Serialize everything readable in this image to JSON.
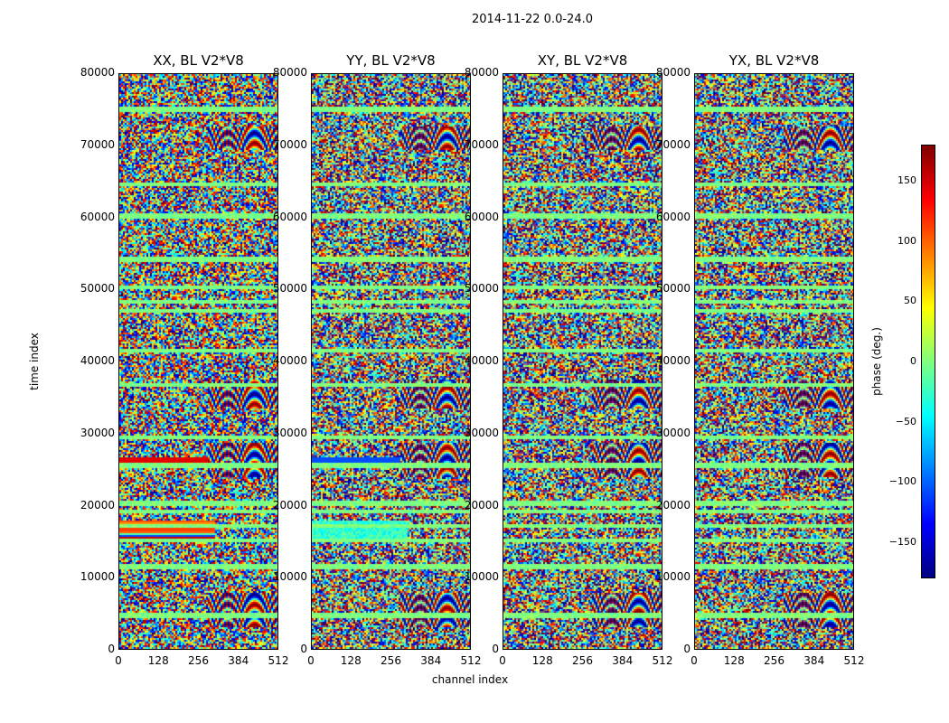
{
  "chart_data": {
    "type": "heatmap",
    "suptitle": "2014-11-22 0.0-24.0",
    "panels": [
      {
        "title": "XX, BL V2*V8"
      },
      {
        "title": "YY, BL V2*V8"
      },
      {
        "title": "XY, BL V2*V8"
      },
      {
        "title": "YX, BL V2*V8"
      }
    ],
    "xlabel": "channel index",
    "ylabel": "time index",
    "x_ticks": [
      "0",
      "128",
      "256",
      "384",
      "512"
    ],
    "y_ticks": [
      "0",
      "10000",
      "20000",
      "30000",
      "40000",
      "50000",
      "60000",
      "70000",
      "80000"
    ],
    "xlim": [
      0,
      512
    ],
    "ylim": [
      0,
      80000
    ],
    "colorbar": {
      "label": "phase (deg.)",
      "ticks": [
        "150",
        "100",
        "50",
        "0",
        "−50",
        "−100",
        "−150"
      ],
      "tick_values": [
        150,
        100,
        50,
        0,
        -50,
        -100,
        -150
      ],
      "range": [
        -180,
        180
      ],
      "colormap": "jet"
    }
  }
}
